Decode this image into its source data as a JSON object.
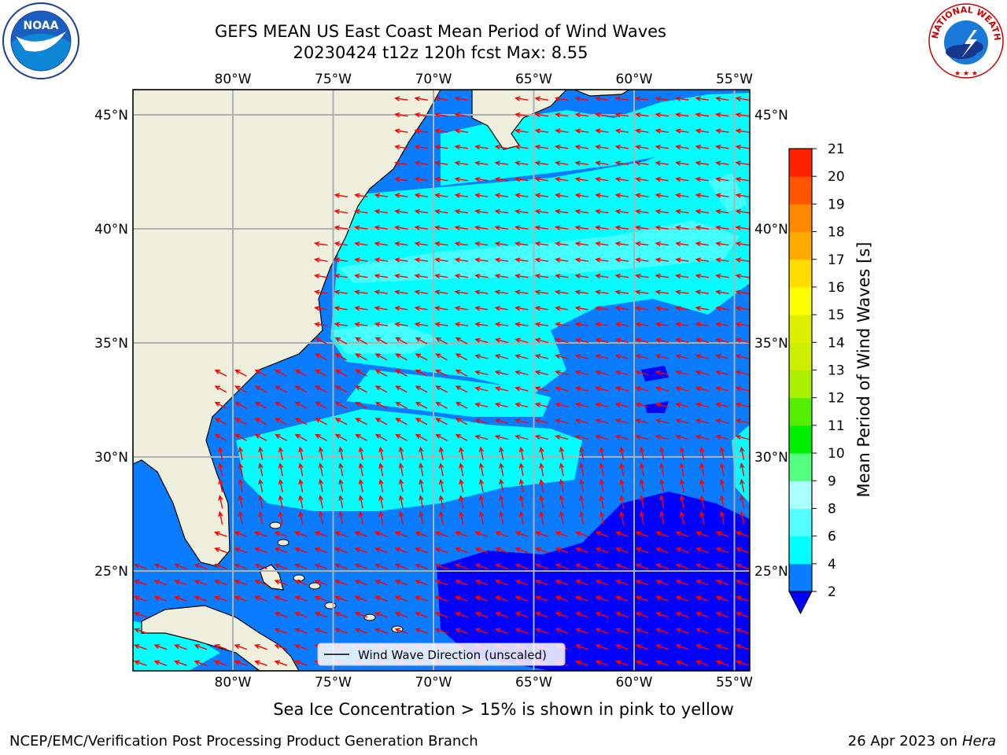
{
  "header": {
    "title_line1": "GEFS MEAN US East Coast Mean Period of Wind Waves",
    "title_line2": "20230424 t12z 120h fcst   Max: 8.55"
  },
  "logos": {
    "left": {
      "icon": "noaa-logo",
      "text": "NOAA"
    },
    "right": {
      "icon": "nws-logo",
      "text": "NATIONAL WEATHER SERVICE"
    }
  },
  "map": {
    "lon_labels": [
      "80°W",
      "75°W",
      "70°W",
      "65°W",
      "60°W",
      "55°W"
    ],
    "lat_labels": [
      "45°N",
      "40°N",
      "35°N",
      "30°N",
      "25°N"
    ],
    "legend_label": "Wind Wave Direction (unscaled)",
    "colors": {
      "land": "#efefdd",
      "level_2_4": "#0a7cff",
      "level_0_2": "#0000ff",
      "level_4_6": "#00ffff",
      "level_6_8": "#55ffff",
      "level_8_9": "#aaffff",
      "arrow": "#ff0000",
      "grid": "#b0b0b0"
    }
  },
  "colorbar": {
    "label": "Mean Period of Wind Waves [s]",
    "ticks": [
      "2",
      "4",
      "6",
      "8",
      "9",
      "10",
      "11",
      "12",
      "13",
      "14",
      "15",
      "16",
      "17",
      "18",
      "19",
      "20",
      "21"
    ],
    "colors": [
      "#0a7cff",
      "#00ffff",
      "#55ffff",
      "#aaffff",
      "#55ff80",
      "#00ee00",
      "#55ee00",
      "#aaee00",
      "#ccee00",
      "#ddee00",
      "#ffff00",
      "#ffdd00",
      "#ffaa00",
      "#ff8800",
      "#ff5500",
      "#ff2200",
      "#ff0000"
    ],
    "under_color": "#0000ff"
  },
  "footer": {
    "note": "Sea Ice Concentration > 15% is shown in pink to yellow",
    "credit": "NCEP/EMC/Verification Post Processing Product Generation Branch",
    "date": "26 Apr 2023 on",
    "machine": "Hera"
  }
}
